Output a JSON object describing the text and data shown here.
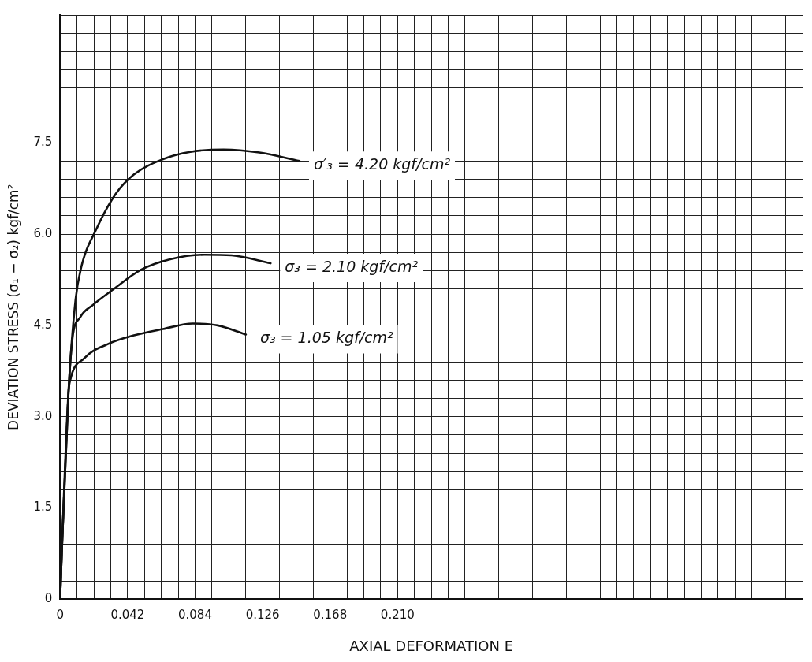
{
  "chart_data": {
    "type": "line",
    "xlabel": "AXIAL DEFORMATION E",
    "ylabel": "DEVIATION STRESS (σ₁ − σ₂) kgf/cm²",
    "xlim": [
      0,
      0.462
    ],
    "ylim": [
      0,
      9.6
    ],
    "xticks": [
      0,
      {
        "value": 0.0105,
        "label": null
      },
      {
        "value": 0.021,
        "label": null
      },
      {
        "value": 0.0315,
        "label": null
      },
      0.042,
      {
        "value": 0.0525,
        "label": null
      },
      {
        "value": 0.063,
        "label": null
      },
      {
        "value": 0.0735,
        "label": null
      },
      0.084,
      {
        "value": 0.0945,
        "label": null
      },
      {
        "value": 0.105,
        "label": null
      },
      {
        "value": 0.1155,
        "label": null
      },
      0.126,
      {
        "value": 0.1365,
        "label": null
      },
      {
        "value": 0.147,
        "label": null
      },
      {
        "value": 0.1575,
        "label": null
      },
      0.168,
      {
        "value": 0.1785,
        "label": null
      },
      {
        "value": 0.189,
        "label": null
      },
      {
        "value": 0.1995,
        "label": null
      },
      {
        "value": 0.21,
        "label": "0.210"
      },
      {
        "value": 0.2205,
        "label": null
      },
      {
        "value": 0.231,
        "label": null
      },
      {
        "value": 0.2415,
        "label": null
      },
      {
        "value": 0.252,
        "label": null
      },
      {
        "value": 0.2625,
        "label": null
      },
      {
        "value": 0.273,
        "label": null
      },
      {
        "value": 0.2835,
        "label": null
      },
      {
        "value": 0.294,
        "label": null
      },
      {
        "value": 0.3045,
        "label": null
      },
      {
        "value": 0.315,
        "label": null
      },
      {
        "value": 0.3255,
        "label": null
      },
      {
        "value": 0.336,
        "label": null
      },
      {
        "value": 0.3465,
        "label": null
      },
      {
        "value": 0.357,
        "label": null
      },
      {
        "value": 0.3675,
        "label": null
      },
      {
        "value": 0.378,
        "label": null
      },
      {
        "value": 0.3885,
        "label": null
      },
      {
        "value": 0.399,
        "label": null
      },
      {
        "value": 0.4095,
        "label": null
      },
      {
        "value": 0.42,
        "label": null
      },
      {
        "value": 0.4305,
        "label": null
      },
      {
        "value": 0.441,
        "label": null
      },
      {
        "value": 0.4515,
        "label": null
      },
      {
        "value": 0.462,
        "label": null
      }
    ],
    "yticks": [
      0,
      {
        "value": 0.3,
        "label": null
      },
      {
        "value": 0.6,
        "label": null
      },
      {
        "value": 0.9,
        "label": null
      },
      {
        "value": 1.2,
        "label": null
      },
      1.5,
      {
        "value": 1.8,
        "label": null
      },
      {
        "value": 2.1,
        "label": null
      },
      {
        "value": 2.4,
        "label": null
      },
      {
        "value": 2.7,
        "label": null
      },
      {
        "value": 3,
        "label": "3.0"
      },
      {
        "value": 3.3,
        "label": null
      },
      {
        "value": 3.6,
        "label": null
      },
      {
        "value": 3.9,
        "label": null
      },
      {
        "value": 4.2,
        "label": null
      },
      4.5,
      {
        "value": 4.8,
        "label": null
      },
      {
        "value": 5.1,
        "label": null
      },
      {
        "value": 5.4,
        "label": null
      },
      {
        "value": 5.7,
        "label": null
      },
      {
        "value": 6,
        "label": "6.0"
      },
      {
        "value": 6.3,
        "label": null
      },
      {
        "value": 6.6,
        "label": null
      },
      {
        "value": 6.9,
        "label": null
      },
      {
        "value": 7.2,
        "label": null
      },
      7.5,
      {
        "value": 7.8,
        "label": null
      },
      {
        "value": 8.1,
        "label": null
      },
      {
        "value": 8.4,
        "label": null
      },
      {
        "value": 8.7,
        "label": null
      },
      {
        "value": 9,
        "label": null
      },
      {
        "value": 9.3,
        "label": null
      },
      {
        "value": 9.6,
        "label": null
      }
    ],
    "grid": true,
    "legend": false,
    "marker": "none",
    "line_style": "solid",
    "series": [
      {
        "name": "σ′₃ = 4.20 kgf/cm²",
        "color": "#111111",
        "x": [
          0,
          0.001,
          0.0052,
          0.0096,
          0.013,
          0.0227,
          0.0346,
          0.046,
          0.064,
          0.081,
          0.1017,
          0.124,
          0.149
        ],
        "values": [
          0,
          0.75,
          3.4,
          4.92,
          5.44,
          6.09,
          6.66,
          6.98,
          7.23,
          7.35,
          7.39,
          7.34,
          7.2
        ]
      },
      {
        "name": "σ₃ = 2.10 kgf/cm²",
        "color": "#111111",
        "x": [
          0,
          0.001,
          0.0052,
          0.0077,
          0.0124,
          0.0206,
          0.033,
          0.05,
          0.069,
          0.0898,
          0.1068,
          0.131
        ],
        "values": [
          0,
          0.75,
          3.4,
          4.29,
          4.63,
          4.84,
          5.09,
          5.41,
          5.59,
          5.66,
          5.65,
          5.52
        ]
      },
      {
        "name": "σ₃ = 1.05 kgf/cm²",
        "color": "#111111",
        "x": [
          0,
          0.001,
          0.0052,
          0.0062,
          0.015,
          0.0294,
          0.0465,
          0.064,
          0.0826,
          0.098,
          0.1156
        ],
        "values": [
          0,
          0.75,
          3.4,
          3.59,
          3.96,
          4.19,
          4.34,
          4.44,
          4.53,
          4.5,
          4.35
        ]
      }
    ]
  }
}
